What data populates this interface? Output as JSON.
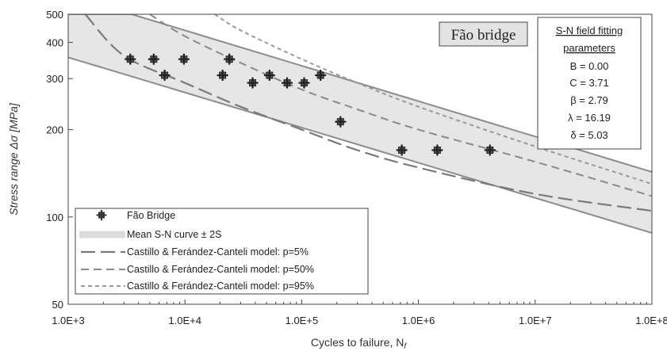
{
  "chart_data": {
    "type": "scatter",
    "title": "",
    "xlabel": "Cycles to failure, N",
    "xlabel_sub": "f",
    "ylabel": "Stress range  Δσ  [MPa]",
    "xscale": "log",
    "yscale": "log",
    "xlim": [
      1000,
      100000000
    ],
    "ylim": [
      50,
      500
    ],
    "x_ticks": [
      1000,
      10000,
      100000,
      1000000,
      10000000,
      100000000
    ],
    "x_tick_labels": [
      "1.0E+3",
      "1.0E+4",
      "1.0E+5",
      "1.0E+6",
      "1.0E+7",
      "1.0E+8"
    ],
    "y_ticks": [
      50,
      100,
      200,
      300,
      400,
      500
    ],
    "y_tick_labels": [
      "50",
      "100",
      "200",
      "300",
      "400",
      "500"
    ],
    "legend_position": "bottom-left",
    "series": [
      {
        "name": "Fão Bridge",
        "kind": "points",
        "color": "#333333",
        "points": [
          [
            3400,
            350
          ],
          [
            5400,
            350
          ],
          [
            6700,
            308
          ],
          [
            9800,
            350
          ],
          [
            21000,
            308
          ],
          [
            24000,
            350
          ],
          [
            38000,
            290
          ],
          [
            53000,
            308
          ],
          [
            75000,
            290
          ],
          [
            105000,
            290
          ],
          [
            145000,
            308
          ],
          [
            215000,
            213
          ],
          [
            720000,
            170
          ],
          [
            1450000,
            170
          ],
          [
            4100000,
            170
          ]
        ]
      },
      {
        "name": "Mean S-N curve ± 2S",
        "kind": "band",
        "color": "#e6e6e6",
        "upper": [
          [
            1000,
            500
          ],
          [
            3500,
            500
          ],
          [
            100000000,
            143
          ]
        ],
        "lower": [
          [
            1000,
            355
          ],
          [
            100000000,
            88
          ]
        ]
      },
      {
        "name": "Castillo & Ferández-Canteli model: p=5%",
        "kind": "line",
        "dash": "long",
        "color": "#7a7a7a",
        "points": [
          [
            1400,
            500
          ],
          [
            3000,
            360
          ],
          [
            10000,
            290
          ],
          [
            30000,
            240
          ],
          [
            100000,
            200
          ],
          [
            300000,
            170
          ],
          [
            1000000,
            148
          ],
          [
            10000000,
            120
          ],
          [
            100000000,
            105
          ]
        ]
      },
      {
        "name": "Castillo & Ferández-Canteli model: p=50%",
        "kind": "line",
        "dash": "medium",
        "color": "#8a8a8a",
        "points": [
          [
            5000,
            500
          ],
          [
            10000,
            420
          ],
          [
            30000,
            340
          ],
          [
            100000,
            275
          ],
          [
            300000,
            235
          ],
          [
            1000000,
            200
          ],
          [
            10000000,
            155
          ],
          [
            100000000,
            118
          ]
        ]
      },
      {
        "name": "Castillo & Ferández-Canteli model: p=95%",
        "kind": "line",
        "dash": "short",
        "color": "#9a9a9a",
        "points": [
          [
            18000,
            500
          ],
          [
            30000,
            440
          ],
          [
            100000,
            350
          ],
          [
            300000,
            290
          ],
          [
            1000000,
            240
          ],
          [
            10000000,
            175
          ],
          [
            100000000,
            130
          ]
        ]
      }
    ],
    "annotations": {
      "bridge_label": "Fão bridge",
      "params_title_1": "S-N field fitting",
      "params_title_2": "parameters",
      "params": [
        "B = 0.00",
        "C = 3.71",
        "β = 2.79",
        "λ = 16.19",
        "δ = 5.03"
      ]
    }
  }
}
